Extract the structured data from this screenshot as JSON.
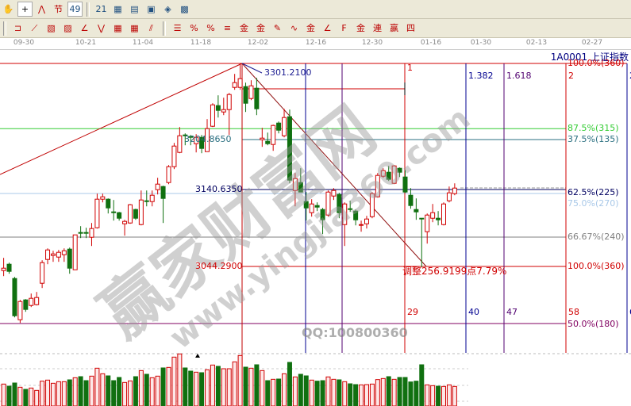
{
  "toolbar_top": {
    "icons": [
      {
        "name": "hand-icon",
        "glyph": "✋"
      },
      {
        "name": "crosshair-icon",
        "glyph": "+",
        "active": true
      },
      {
        "name": "polyline-icon",
        "glyph": "⋀"
      },
      {
        "name": "jie-festival-icon",
        "glyph": "节"
      },
      {
        "name": "pattern-49-icon",
        "glyph": "49",
        "active": true
      },
      {
        "name": "calendar-icon",
        "glyph": "21"
      },
      {
        "name": "calculator-icon",
        "glyph": "▦"
      },
      {
        "name": "document-icon",
        "glyph": "▤"
      },
      {
        "name": "save-icon",
        "glyph": "▣"
      },
      {
        "name": "network-icon",
        "glyph": "◈"
      },
      {
        "name": "computer-icon",
        "glyph": "▩"
      }
    ]
  },
  "toolbar_draw": {
    "icons": [
      {
        "name": "box-tool-icon",
        "glyph": "⊐"
      },
      {
        "name": "fan-lines-icon",
        "glyph": "⟋"
      },
      {
        "name": "gann-box-icon",
        "glyph": "▧"
      },
      {
        "name": "gann-fan-icon",
        "glyph": "▨"
      },
      {
        "name": "angle-lines-icon",
        "glyph": "∠"
      },
      {
        "name": "zigzag-icon",
        "glyph": "⋁"
      },
      {
        "name": "grid-icon",
        "glyph": "▦"
      },
      {
        "name": "grid-arrow-icon",
        "glyph": "▦"
      },
      {
        "name": "parallel-lines-icon",
        "glyph": "⫽"
      },
      {
        "name": "ruler-icon",
        "glyph": "☰"
      },
      {
        "name": "percent-line-icon",
        "glyph": "%"
      },
      {
        "name": "percent-icon",
        "glyph": "%"
      },
      {
        "name": "percent-levels-icon",
        "glyph": "≡"
      },
      {
        "name": "gold-circle-icon",
        "glyph": "金"
      },
      {
        "name": "gold-levels-icon",
        "glyph": "金"
      },
      {
        "name": "marker-icon",
        "glyph": "✎"
      },
      {
        "name": "cycle-icon",
        "glyph": "∿"
      },
      {
        "name": "gold-split-icon",
        "glyph": "金"
      },
      {
        "name": "fib-fan-icon",
        "glyph": "∠"
      },
      {
        "name": "f-fan-icon",
        "glyph": "F"
      },
      {
        "name": "gold-fan-icon",
        "glyph": "金"
      },
      {
        "name": "lian-fan-icon",
        "glyph": "連"
      },
      {
        "name": "ying-fan-icon",
        "glyph": "赢"
      },
      {
        "name": "four-fan-icon",
        "glyph": "四"
      }
    ]
  },
  "date_axis": [
    "09-30",
    "10-21",
    "11-04",
    "11-18",
    "12-02",
    "12-16",
    "12-30",
    "01-16",
    "01-30",
    "02-13",
    "02-27"
  ],
  "symbol_title": "1A0001  上证指数",
  "price_labels": {
    "high": "3301.2100",
    "level_a": "3204.8650",
    "level_b": "3140.6350",
    "low": "3044.2900",
    "adjustment": "调整256.9199点7.79%"
  },
  "gann_levels": [
    {
      "label": "100.0%(360)",
      "price": 3301.21,
      "color": "#d00000"
    },
    {
      "label": "87.5%(315)",
      "price": 3219,
      "color": "#33cc33"
    },
    {
      "label": "37.5%(135)",
      "price": 3204.865,
      "color": "#2a6f80"
    },
    {
      "label": "75.0%(270)",
      "price": 3137,
      "color": "#a8c8e8"
    },
    {
      "label": "62.5%(225)",
      "price": 3140.635,
      "color": "#000060"
    },
    {
      "label": "66.67%(240)",
      "price": 3082,
      "color": "#808080"
    },
    {
      "label": "100.0%(360)",
      "price": 3044.29,
      "color": "#d00000"
    },
    {
      "label": "50.0%(180)",
      "price": 2973,
      "color": "#800060"
    }
  ],
  "time_markers": [
    {
      "top": "1",
      "bottom": "29",
      "color": "#d00000"
    },
    {
      "top": "1.382",
      "bottom": "40",
      "color": "#000090"
    },
    {
      "top": "1.618",
      "bottom": "47",
      "color": "#500070"
    },
    {
      "top": "2",
      "bottom": "58",
      "color": "#d00000"
    },
    {
      "top": "2",
      "bottom": "6",
      "color": "#000090"
    }
  ],
  "watermark": {
    "cn": "赢家财富网",
    "url": "www.yingjia360.com",
    "qq": "QQ:100800360"
  },
  "colors": {
    "up": "#d00000",
    "down": "#107010",
    "frame": "#c00000"
  },
  "chart_data": {
    "type": "candlestick",
    "candles_ohlc": [
      [
        3040,
        3056,
        3033,
        3043
      ],
      [
        3048,
        3050,
        3036,
        3039
      ],
      [
        3030,
        3032,
        2981,
        2983
      ],
      [
        2978,
        3003,
        2974,
        3001
      ],
      [
        3003,
        3004,
        2988,
        2991
      ],
      [
        2996,
        3011,
        2994,
        3005
      ],
      [
        2997,
        3013,
        2996,
        3006
      ],
      [
        3024,
        3053,
        3018,
        3050
      ],
      [
        3054,
        3068,
        3048,
        3066
      ],
      [
        3059,
        3065,
        3051,
        3061
      ],
      [
        3057,
        3066,
        3051,
        3063
      ],
      [
        3060,
        3068,
        3051,
        3065
      ],
      [
        3067,
        3069,
        3036,
        3043
      ],
      [
        3041,
        3085,
        3041,
        3085
      ],
      [
        3088,
        3096,
        3081,
        3087
      ],
      [
        3088,
        3094,
        3081,
        3087
      ],
      [
        3082,
        3100,
        3071,
        3093
      ],
      [
        3094,
        3137,
        3093,
        3130
      ],
      [
        3130,
        3137,
        3126,
        3133
      ],
      [
        3130,
        3131,
        3112,
        3119
      ],
      [
        3114,
        3129,
        3103,
        3113
      ],
      [
        3113,
        3114,
        3103,
        3106
      ],
      [
        3099,
        3104,
        3084,
        3102
      ],
      [
        3100,
        3124,
        3099,
        3123
      ],
      [
        3117,
        3118,
        3104,
        3106
      ],
      [
        3098,
        3141,
        3097,
        3129
      ],
      [
        3128,
        3141,
        3121,
        3127
      ],
      [
        3127,
        3141,
        3121,
        3135
      ],
      [
        3142,
        3157,
        3136,
        3149
      ],
      [
        3146,
        3147,
        3100,
        3131
      ],
      [
        3151,
        3173,
        3149,
        3171
      ],
      [
        3171,
        3201,
        3168,
        3197
      ],
      [
        3189,
        3221,
        3188,
        3210
      ],
      [
        3211,
        3213,
        3198,
        3210
      ],
      [
        3209,
        3211,
        3198,
        3208
      ],
      [
        3200,
        3212,
        3189,
        3208
      ],
      [
        3208,
        3211,
        3188,
        3194
      ],
      [
        3190,
        3231,
        3190,
        3219
      ],
      [
        3222,
        3251,
        3221,
        3249
      ],
      [
        3248,
        3261,
        3233,
        3242
      ],
      [
        3240,
        3258,
        3236,
        3243
      ],
      [
        3243,
        3264,
        3211,
        3262
      ],
      [
        3271,
        3288,
        3268,
        3277
      ],
      [
        3271,
        3301.21,
        3268,
        3282
      ],
      [
        3272,
        3277,
        3240,
        3251
      ],
      [
        3257,
        3280,
        3255,
        3273
      ],
      [
        3270,
        3283,
        3236,
        3244
      ],
      [
        3205,
        3220,
        3196,
        3207
      ],
      [
        3203,
        3214,
        3198,
        3200
      ],
      [
        3199,
        3224,
        3191,
        3223
      ],
      [
        3226,
        3228,
        3213,
        3217
      ],
      [
        3210,
        3244,
        3208,
        3233
      ],
      [
        3234,
        3243,
        3150,
        3154
      ],
      [
        3141,
        3163,
        3121,
        3156
      ],
      [
        3151,
        3169,
        3139,
        3139
      ],
      [
        3127,
        3139,
        3103,
        3119
      ],
      [
        3113,
        3130,
        3108,
        3124
      ],
      [
        3122,
        3126,
        3115,
        3120
      ],
      [
        3117,
        3119,
        3086,
        3104
      ],
      [
        3110,
        3141,
        3108,
        3139
      ],
      [
        3134,
        3144,
        3129,
        3141
      ],
      [
        3136,
        3138,
        3106,
        3113
      ],
      [
        3098,
        3126,
        3071,
        3124
      ],
      [
        3118,
        3128,
        3114,
        3117
      ],
      [
        3115,
        3117,
        3097,
        3104
      ],
      [
        3097,
        3103,
        3089,
        3098
      ],
      [
        3099,
        3109,
        3093,
        3105
      ],
      [
        3108,
        3139,
        3106,
        3137
      ],
      [
        3133,
        3163,
        3132,
        3160
      ],
      [
        3159,
        3169,
        3157,
        3166
      ],
      [
        3164,
        3172,
        3153,
        3155
      ],
      [
        3150,
        3173,
        3149,
        3172
      ],
      [
        3169,
        3170,
        3158,
        3164
      ],
      [
        3158,
        3167,
        3138,
        3139
      ],
      [
        3135,
        3144,
        3118,
        3122
      ],
      [
        3117,
        3131,
        3104,
        3114
      ],
      [
        3106,
        3106,
        3044.29,
        3105
      ],
      [
        3089,
        3112,
        3074,
        3110
      ],
      [
        3106,
        3124,
        3101,
        3113
      ],
      [
        3106,
        3115,
        3097,
        3104
      ],
      [
        3098,
        3126,
        3097,
        3124
      ],
      [
        3128,
        3146,
        3126,
        3138
      ],
      [
        3137,
        3150,
        3135,
        3144
      ]
    ],
    "volume_relative": [
      83,
      75,
      87,
      71,
      63,
      68,
      59,
      94,
      98,
      86,
      92,
      92,
      99,
      107,
      111,
      96,
      113,
      143,
      122,
      114,
      96,
      108,
      89,
      95,
      111,
      134,
      120,
      107,
      113,
      144,
      146,
      185,
      197,
      144,
      132,
      128,
      126,
      137,
      155,
      150,
      141,
      141,
      167,
      191,
      147,
      143,
      156,
      134,
      96,
      101,
      102,
      122,
      165,
      110,
      120,
      114,
      98,
      94,
      96,
      110,
      101,
      99,
      92,
      84,
      81,
      80,
      81,
      83,
      100,
      104,
      111,
      101,
      108,
      108,
      91,
      94,
      156,
      80,
      77,
      75,
      74,
      80,
      74
    ],
    "volume_up": [
      true,
      false,
      false,
      true,
      false,
      true,
      true,
      true,
      true,
      true,
      true,
      true,
      false,
      true,
      false,
      false,
      true,
      true,
      true,
      false,
      false,
      false,
      true,
      true,
      false,
      true,
      false,
      true,
      true,
      false,
      true,
      true,
      true,
      false,
      false,
      true,
      false,
      true,
      true,
      false,
      true,
      true,
      true,
      true,
      false,
      true,
      false,
      true,
      false,
      true,
      false,
      true,
      false,
      true,
      false,
      false,
      true,
      false,
      false,
      true,
      true,
      false,
      true,
      false,
      false,
      true,
      true,
      true,
      true,
      true,
      false,
      true,
      false,
      false,
      false,
      false,
      false,
      true,
      true,
      false,
      true,
      true,
      true
    ],
    "price_range": [
      2965,
      3310
    ]
  }
}
